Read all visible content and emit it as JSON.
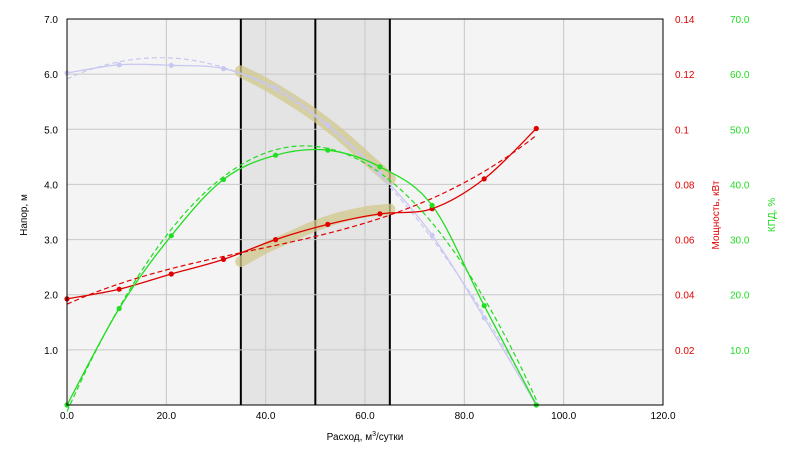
{
  "chart_data": {
    "type": "line",
    "xlabel": "Расход, м³/сутки",
    "xlabel_pre": "Расход, м",
    "xlabel_sup": "3",
    "xlabel_post": "/сутки",
    "ylabel_left": "Напор, м",
    "ylabel_right1": "Мощность, кВт",
    "ylabel_right2": "КПД, %",
    "xlim": [
      0,
      120
    ],
    "ylim_left": [
      0,
      7
    ],
    "ylim_power": [
      0,
      0.14
    ],
    "ylim_eff": [
      0,
      70
    ],
    "x_ticks": [
      "0.0",
      "20.0",
      "40.0",
      "60.0",
      "80.0",
      "100.0",
      "120.0"
    ],
    "y_ticks_left": [
      "1.0",
      "2.0",
      "3.0",
      "4.0",
      "5.0",
      "6.0",
      "7.0"
    ],
    "y_ticks_power": [
      "0.02",
      "0.04",
      "0.06",
      "0.08",
      "0.1",
      "0.12",
      "0.14"
    ],
    "y_ticks_eff": [
      "10.0",
      "20.0",
      "30.0",
      "40.0",
      "50.0",
      "60.0",
      "70.0"
    ],
    "grid": true,
    "operating_range": [
      35,
      65
    ],
    "operating_point": 50,
    "colors": {
      "head": "#c8c8f0",
      "power": "#e00000",
      "efficiency": "#22dd22",
      "band": "#d2c88c",
      "range_fill": "#e4e4e4",
      "plot_bg": "#f4f4f4",
      "grid": "#c8c8c8"
    },
    "series": [
      {
        "key": "head",
        "axis": "left",
        "x": [
          0,
          10.5,
          21,
          31.5,
          42,
          52.5,
          63,
          73.5,
          84,
          94.5
        ],
        "y": [
          6.02,
          6.17,
          6.16,
          6.1,
          5.75,
          5.08,
          4.2,
          3.08,
          1.58,
          0.0
        ]
      },
      {
        "key": "power",
        "axis": "power",
        "x": [
          0,
          10.5,
          21,
          31.5,
          42,
          52.5,
          63,
          73.5,
          84,
          94.5
        ],
        "y": [
          0.0385,
          0.042,
          0.0475,
          0.0528,
          0.06,
          0.0655,
          0.0693,
          0.0712,
          0.082,
          0.1003
        ]
      },
      {
        "key": "efficiency",
        "axis": "eff",
        "x": [
          0,
          10.5,
          21,
          31.5,
          42,
          52.5,
          63,
          73.5,
          84,
          94.5
        ],
        "y": [
          0.0,
          17.5,
          30.7,
          40.9,
          45.3,
          46.2,
          43.2,
          36.2,
          18.0,
          0.0
        ]
      }
    ],
    "bands": [
      {
        "key": "head-band",
        "axis": "left",
        "x": [
          35,
          40,
          45,
          50,
          55,
          60,
          65
        ],
        "y": [
          6.05,
          5.82,
          5.55,
          5.25,
          4.9,
          4.5,
          4.1
        ],
        "width": 0.22
      },
      {
        "key": "power-band",
        "axis": "left",
        "x": [
          35,
          40,
          45,
          50,
          55,
          60,
          65
        ],
        "y": [
          2.6,
          2.85,
          3.05,
          3.25,
          3.4,
          3.5,
          3.55
        ],
        "width": 0.2
      }
    ]
  }
}
